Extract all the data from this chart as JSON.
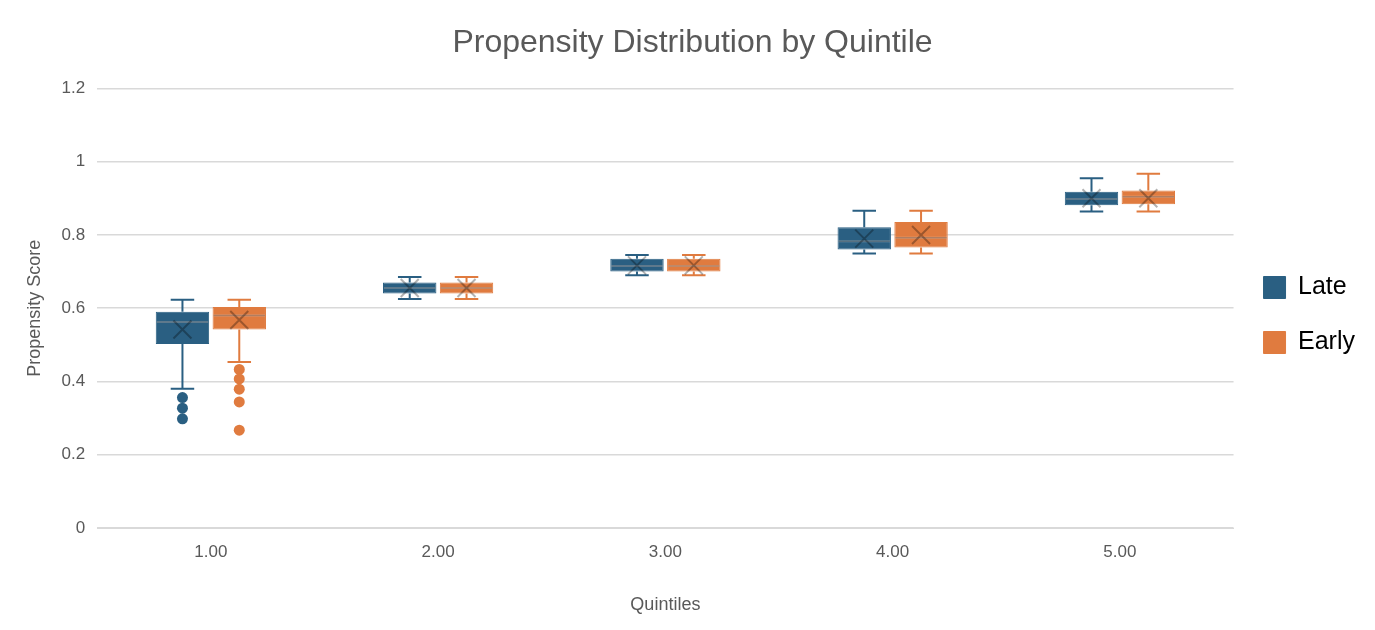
{
  "chart_data": {
    "type": "box",
    "title": "Propensity Distribution by Quintile",
    "xlabel": "Quintiles",
    "ylabel": "Propensity Score",
    "categories": [
      "1.00",
      "2.00",
      "3.00",
      "4.00",
      "5.00"
    ],
    "series": [
      {
        "name": "Late",
        "color": "#2a5f82",
        "boxes": [
          {
            "low": 0.38,
            "q1": 0.502,
            "median": 0.562,
            "q3": 0.59,
            "high": 0.623,
            "mean": 0.542,
            "outliers": [
              0.356,
              0.327,
              0.298
            ]
          },
          {
            "low": 0.625,
            "q1": 0.64,
            "median": 0.655,
            "q3": 0.67,
            "high": 0.685,
            "mean": 0.655
          },
          {
            "low": 0.69,
            "q1": 0.7,
            "median": 0.715,
            "q3": 0.735,
            "high": 0.745,
            "mean": 0.717
          },
          {
            "low": 0.749,
            "q1": 0.76,
            "median": 0.783,
            "q3": 0.821,
            "high": 0.866,
            "mean": 0.79
          },
          {
            "low": 0.864,
            "q1": 0.881,
            "median": 0.898,
            "q3": 0.918,
            "high": 0.955,
            "mean": 0.9
          }
        ]
      },
      {
        "name": "Early",
        "color": "#e07b3f",
        "boxes": [
          {
            "low": 0.453,
            "q1": 0.542,
            "median": 0.58,
            "q3": 0.603,
            "high": 0.623,
            "mean": 0.568,
            "outliers": [
              0.433,
              0.407,
              0.379,
              0.344,
              0.267
            ]
          },
          {
            "low": 0.625,
            "q1": 0.64,
            "median": 0.655,
            "q3": 0.67,
            "high": 0.685,
            "mean": 0.655
          },
          {
            "low": 0.69,
            "q1": 0.7,
            "median": 0.715,
            "q3": 0.735,
            "high": 0.745,
            "mean": 0.717
          },
          {
            "low": 0.749,
            "q1": 0.766,
            "median": 0.792,
            "q3": 0.835,
            "high": 0.866,
            "mean": 0.8
          },
          {
            "low": 0.864,
            "q1": 0.884,
            "median": 0.904,
            "q3": 0.921,
            "high": 0.967,
            "mean": 0.9
          }
        ]
      }
    ],
    "ylim": [
      0,
      1.2
    ],
    "yticks": [
      0,
      0.2,
      0.4,
      0.6,
      0.8,
      1,
      1.2
    ],
    "grid": "y",
    "legend": "right",
    "marker": "circle"
  }
}
